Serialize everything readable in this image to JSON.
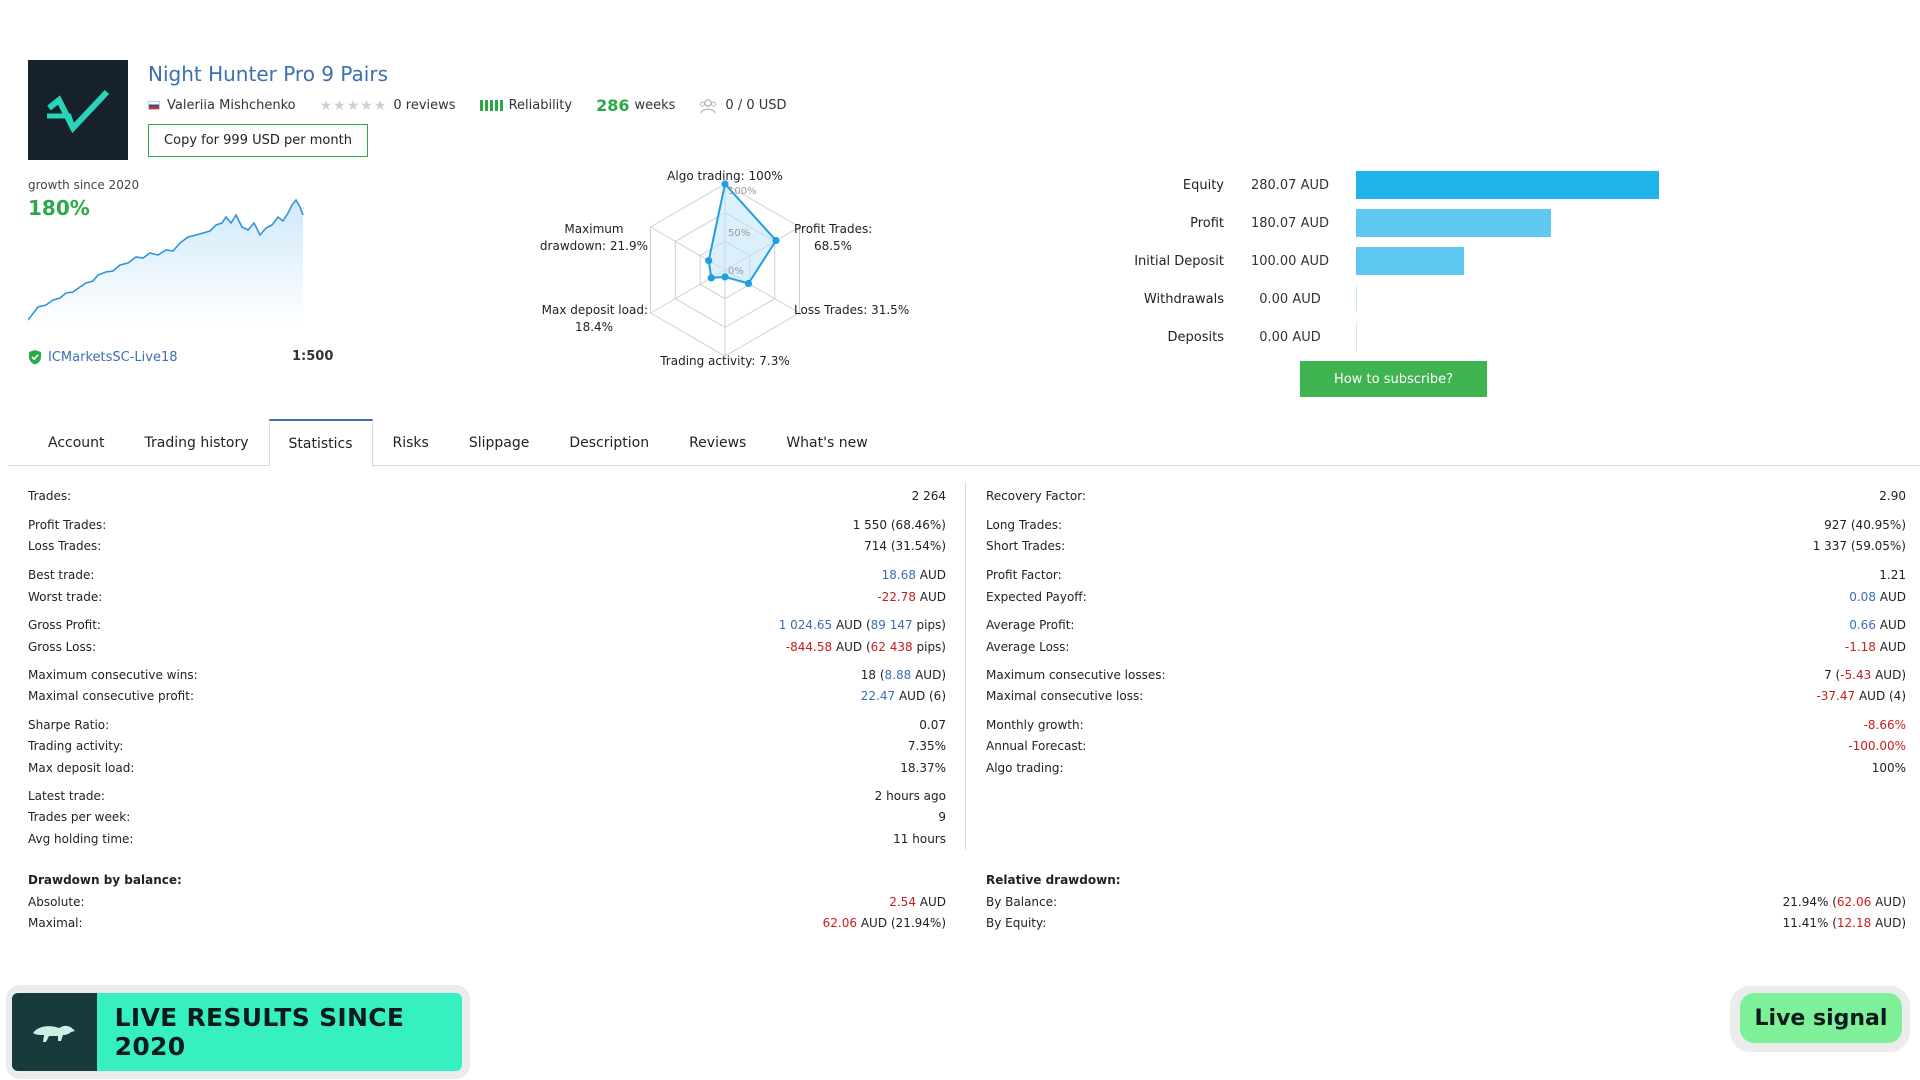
{
  "header": {
    "title": "Night Hunter Pro 9 Pairs",
    "author": "Valeriia Mishchenko",
    "reviews": "0 reviews",
    "reliability": "Reliability",
    "weeks_num": "286",
    "weeks_label": "weeks",
    "subscribers": "0 / 0 USD",
    "copy_button": "Copy for 999 USD per month"
  },
  "growth": {
    "label": "growth since 2020",
    "value": "180%",
    "broker": "ICMarketsSC-Live18",
    "leverage": "1:500"
  },
  "radar": {
    "labels": {
      "algo": "Algo trading: 100%",
      "profit_1": "Profit Trades:",
      "profit_2": "68.5%",
      "loss": "Loss Trades: 31.5%",
      "activity": "Trading activity: 7.3%",
      "deposit_1": "Max deposit load:",
      "deposit_2": "18.4%",
      "drawdown_1": "Maximum",
      "drawdown_2": "drawdown: 21.9%"
    },
    "scale": [
      "100%",
      "50%",
      "0%"
    ],
    "values": [
      100,
      68.5,
      31.5,
      7.3,
      18.4,
      21.9
    ]
  },
  "balance": {
    "rows": [
      {
        "label": "Equity",
        "value": "280.07 AUD",
        "amount": 280.07,
        "color": "#1fb3ea"
      },
      {
        "label": "Profit",
        "value": "180.07 AUD",
        "amount": 180.07,
        "color": "#5fc8f0"
      },
      {
        "label": "Initial Deposit",
        "value": "100.00 AUD",
        "amount": 100.0,
        "color": "#5fc8f0"
      },
      {
        "label": "Withdrawals",
        "value": "0.00 AUD",
        "amount": 0,
        "color": "#9bdcf5"
      },
      {
        "label": "Deposits",
        "value": "0.00 AUD",
        "amount": 0,
        "color": "#9bdcf5"
      }
    ],
    "subscribe_button": "How to subscribe?"
  },
  "tabs": [
    "Account",
    "Trading history",
    "Statistics",
    "Risks",
    "Slippage",
    "Description",
    "Reviews",
    "What's new"
  ],
  "active_tab": "Statistics",
  "stats_left": [
    {
      "label": "Trades:",
      "value": "2 264"
    },
    {
      "label": "Profit Trades:",
      "value": "1 550 (68.46%)"
    },
    {
      "label": "Loss Trades:",
      "value": "714 (31.54%)"
    },
    {
      "label": "Best trade:",
      "value_a": "18.68",
      "value_b": " AUD"
    },
    {
      "label": "Worst trade:",
      "value_a": "-22.78",
      "value_b": " AUD"
    },
    {
      "label": "Gross Profit:",
      "value_a": "1 024.65",
      "value_b": " AUD (",
      "value_c": "89 147",
      "value_d": " pips)"
    },
    {
      "label": "Gross Loss:",
      "value_a": "-844.58",
      "value_b": " AUD (",
      "value_c": "62 438",
      "value_d": " pips)"
    },
    {
      "label": "Maximum consecutive wins:",
      "value_a": "18 (",
      "value_b": "8.88",
      "value_c": " AUD)"
    },
    {
      "label": "Maximal consecutive profit:",
      "value_a": "22.47",
      "value_b": " AUD (6)"
    },
    {
      "label": "Sharpe Ratio:",
      "value": "0.07"
    },
    {
      "label": "Trading activity:",
      "value": "7.35%"
    },
    {
      "label": "Max deposit load:",
      "value": "18.37%"
    },
    {
      "label": "Latest trade:",
      "value": "2 hours ago"
    },
    {
      "label": "Trades per week:",
      "value": "9"
    },
    {
      "label": "Avg holding time:",
      "value": "11 hours"
    }
  ],
  "stats_right": [
    {
      "label": "Recovery Factor:",
      "value": "2.90"
    },
    {
      "label": "Long Trades:",
      "value": "927 (40.95%)"
    },
    {
      "label": "Short Trades:",
      "value": "1 337 (59.05%)"
    },
    {
      "label": "Profit Factor:",
      "value": "1.21"
    },
    {
      "label": "Expected Payoff:",
      "value_a": "0.08",
      "value_b": " AUD"
    },
    {
      "label": "Average Profit:",
      "value_a": "0.66",
      "value_b": " AUD"
    },
    {
      "label": "Average Loss:",
      "value_a": "-1.18",
      "value_b": " AUD"
    },
    {
      "label": "Maximum consecutive losses:",
      "value_a": "7 (",
      "value_b": "-5.43",
      "value_c": " AUD)"
    },
    {
      "label": "Maximal consecutive loss:",
      "value_a": "-37.47",
      "value_b": " AUD (4)"
    },
    {
      "label": "Monthly growth:",
      "value": "-8.66%"
    },
    {
      "label": "Annual Forecast:",
      "value": "-100.00%"
    },
    {
      "label": "Algo trading:",
      "value": "100%"
    }
  ],
  "drawdown_balance": {
    "title": "Drawdown by balance:",
    "absolute_label": "Absolute:",
    "absolute_a": "2.54",
    "absolute_b": " AUD",
    "maximal_label": "Maximal:",
    "maximal_a": "62.06",
    "maximal_b": " AUD (21.94%)"
  },
  "relative_drawdown": {
    "title": "Relative drawdown:",
    "balance_label": "By Balance:",
    "balance_a": "21.94% (",
    "balance_b": "62.06",
    "balance_c": " AUD)",
    "equity_label": "By Equity:",
    "equity_a": "11.41% (",
    "equity_b": "12.18",
    "equity_c": " AUD)"
  },
  "banner": {
    "text": "LIVE RESULTS SINCE 2020",
    "live_signal": "Live signal"
  }
}
